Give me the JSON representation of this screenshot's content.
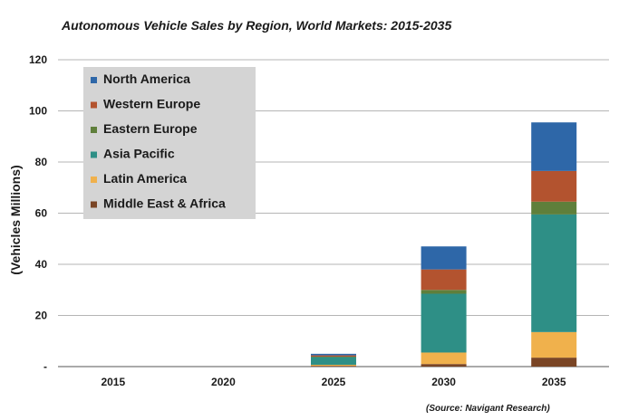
{
  "chart_data": {
    "type": "bar",
    "stacked": true,
    "title": "Autonomous Vehicle Sales by Region, World Markets: 2015-2035",
    "source": "(Source: Navigant Research)",
    "xlabel": "",
    "ylabel": "(Vehicles Millions)",
    "categories": [
      "2015",
      "2020",
      "2025",
      "2030",
      "2035"
    ],
    "y_ticks": [
      "120",
      "100",
      "80",
      "60",
      "40",
      "20",
      "-"
    ],
    "ylim": [
      0,
      120
    ],
    "grid": true,
    "legend_position": "top-left",
    "series": [
      {
        "name": "North America",
        "color": "#2e67a8",
        "values": [
          0,
          0,
          0.6,
          9,
          19
        ]
      },
      {
        "name": "Western Europe",
        "color": "#b3532f",
        "values": [
          0,
          0,
          0.5,
          8,
          12
        ]
      },
      {
        "name": "Eastern Europe",
        "color": "#5f7f3b",
        "values": [
          0,
          0,
          0.2,
          1.5,
          5
        ]
      },
      {
        "name": "Asia Pacific",
        "color": "#2e8f86",
        "values": [
          0,
          0,
          3,
          23,
          46
        ]
      },
      {
        "name": "Latin America",
        "color": "#f0b14c",
        "values": [
          0,
          0,
          0.4,
          4.5,
          10
        ]
      },
      {
        "name": "Middle East & Africa",
        "color": "#7a4525",
        "values": [
          0,
          0,
          0.3,
          1,
          3.5
        ]
      }
    ]
  }
}
